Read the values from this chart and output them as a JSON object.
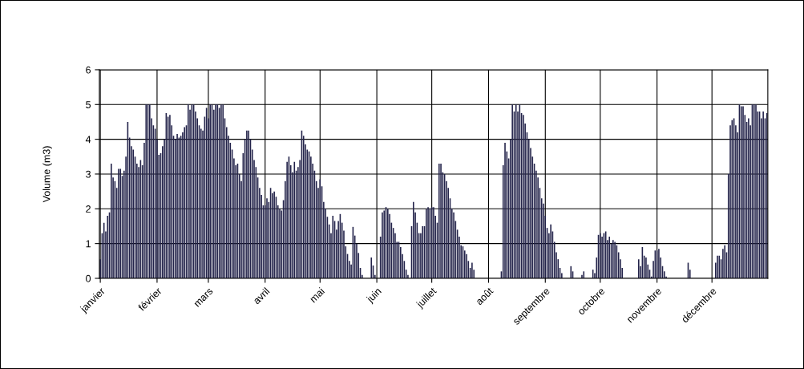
{
  "chart_data": {
    "type": "bar",
    "ylabel": "Volume (m3)",
    "categories": [
      "janvier",
      null,
      null,
      null,
      null,
      null,
      null,
      null,
      null,
      null,
      null,
      null,
      null,
      null,
      null,
      null,
      null,
      null,
      null,
      null,
      null,
      null,
      null,
      null,
      null,
      null,
      null,
      null,
      null,
      null,
      null,
      "février",
      null,
      null,
      null,
      null,
      null,
      null,
      null,
      null,
      null,
      null,
      null,
      null,
      null,
      null,
      null,
      null,
      null,
      null,
      null,
      null,
      null,
      null,
      null,
      null,
      null,
      null,
      null,
      "mars",
      null,
      null,
      null,
      null,
      null,
      null,
      null,
      null,
      null,
      null,
      null,
      null,
      null,
      null,
      null,
      null,
      null,
      null,
      null,
      null,
      null,
      null,
      null,
      null,
      null,
      null,
      null,
      null,
      null,
      null,
      "avril",
      null,
      null,
      null,
      null,
      null,
      null,
      null,
      null,
      null,
      null,
      null,
      null,
      null,
      null,
      null,
      null,
      null,
      null,
      null,
      null,
      null,
      null,
      null,
      null,
      null,
      null,
      null,
      null,
      null,
      "mai",
      null,
      null,
      null,
      null,
      null,
      null,
      null,
      null,
      null,
      null,
      null,
      null,
      null,
      null,
      null,
      null,
      null,
      null,
      null,
      null,
      null,
      null,
      null,
      null,
      null,
      null,
      null,
      null,
      null,
      null,
      "juin",
      null,
      null,
      null,
      null,
      null,
      null,
      null,
      null,
      null,
      null,
      null,
      null,
      null,
      null,
      null,
      null,
      null,
      null,
      null,
      null,
      null,
      null,
      null,
      null,
      null,
      null,
      null,
      null,
      null,
      "juillet",
      null,
      null,
      null,
      null,
      null,
      null,
      null,
      null,
      null,
      null,
      null,
      null,
      null,
      null,
      null,
      null,
      null,
      null,
      null,
      null,
      null,
      null,
      null,
      null,
      null,
      null,
      null,
      null,
      null,
      null,
      "août",
      null,
      null,
      null,
      null,
      null,
      null,
      null,
      null,
      null,
      null,
      null,
      null,
      null,
      null,
      null,
      null,
      null,
      null,
      null,
      null,
      null,
      null,
      null,
      null,
      null,
      null,
      null,
      null,
      null,
      null,
      "septembre",
      null,
      null,
      null,
      null,
      null,
      null,
      null,
      null,
      null,
      null,
      null,
      null,
      null,
      null,
      null,
      null,
      null,
      null,
      null,
      null,
      null,
      null,
      null,
      null,
      null,
      null,
      null,
      null,
      null,
      "octobre",
      null,
      null,
      null,
      null,
      null,
      null,
      null,
      null,
      null,
      null,
      null,
      null,
      null,
      null,
      null,
      null,
      null,
      null,
      null,
      null,
      null,
      null,
      null,
      null,
      null,
      null,
      null,
      null,
      null,
      null,
      "novembre",
      null,
      null,
      null,
      null,
      null,
      null,
      null,
      null,
      null,
      null,
      null,
      null,
      null,
      null,
      null,
      null,
      null,
      null,
      null,
      null,
      null,
      null,
      null,
      null,
      null,
      null,
      null,
      null,
      null,
      "décembre",
      null,
      null,
      null,
      null,
      null,
      null,
      null,
      null,
      null,
      null,
      null,
      null,
      null,
      null,
      null,
      null,
      null,
      null,
      null,
      null,
      null,
      null,
      null,
      null,
      null,
      null,
      null,
      null,
      null,
      null
    ],
    "values": [
      0.55,
      1.3,
      1.6,
      1.35,
      1.8,
      1.9,
      3.3,
      2.9,
      2.8,
      2.6,
      3.15,
      3.15,
      2.95,
      3.1,
      3.5,
      4.5,
      4.05,
      3.8,
      3.7,
      3.5,
      3.3,
      3.2,
      3.4,
      3.25,
      3.9,
      5.0,
      5.0,
      5.0,
      4.6,
      4.4,
      4.3,
      4.0,
      3.55,
      3.6,
      3.8,
      4.0,
      4.75,
      4.65,
      4.7,
      4.4,
      4.1,
      4.0,
      4.15,
      4.05,
      4.1,
      4.2,
      4.35,
      4.4,
      5.0,
      4.85,
      5.0,
      5.0,
      4.8,
      4.6,
      4.4,
      4.3,
      4.25,
      4.65,
      4.9,
      4.6,
      5.0,
      5.0,
      4.85,
      5.0,
      5.0,
      4.9,
      5.0,
      5.0,
      4.6,
      4.35,
      4.1,
      3.9,
      3.7,
      3.45,
      3.25,
      3.3,
      3.0,
      2.8,
      3.6,
      4.0,
      4.25,
      4.25,
      4.0,
      3.7,
      3.4,
      3.2,
      2.9,
      2.6,
      2.4,
      2.1,
      2.1,
      2.3,
      2.2,
      2.6,
      2.45,
      2.5,
      2.35,
      2.1,
      2.0,
      1.95,
      2.25,
      2.8,
      3.35,
      3.5,
      3.25,
      3.05,
      3.35,
      3.1,
      3.2,
      3.4,
      4.25,
      4.1,
      3.85,
      3.7,
      3.65,
      3.5,
      3.3,
      3.1,
      2.8,
      2.6,
      2.85,
      2.65,
      2.2,
      2.0,
      1.77,
      1.55,
      1.3,
      1.8,
      1.65,
      1.4,
      1.65,
      1.85,
      1.6,
      1.37,
      0.92,
      0.7,
      0.5,
      0.4,
      1.48,
      1.23,
      1.0,
      0.73,
      0.3,
      0.1,
      0,
      0,
      0,
      0,
      0.6,
      0.37,
      0.1,
      0,
      0,
      1.2,
      1.9,
      1.95,
      2.05,
      2.0,
      1.85,
      1.6,
      1.45,
      1.3,
      1.05,
      1.05,
      0.9,
      0.7,
      0.5,
      0.25,
      0.1,
      0,
      1.5,
      2.2,
      1.9,
      1.6,
      1.3,
      1.3,
      1.5,
      1.5,
      2.0,
      2.05,
      2.0,
      2.05,
      2.05,
      1.8,
      1.6,
      3.3,
      3.3,
      3.05,
      3.0,
      2.8,
      2.6,
      2.3,
      2.0,
      1.9,
      1.65,
      1.4,
      1.2,
      0.95,
      0.92,
      0.8,
      0.7,
      0.5,
      0.3,
      0.45,
      0.25,
      0,
      0,
      0,
      0,
      0,
      0,
      0,
      0,
      0,
      0,
      0,
      0,
      0,
      0,
      0.2,
      3.25,
      3.9,
      3.65,
      3.45,
      4.0,
      5.0,
      4.8,
      5.0,
      4.8,
      5.0,
      4.75,
      4.7,
      4.45,
      4.2,
      4.0,
      3.75,
      3.5,
      3.3,
      3.1,
      2.9,
      2.6,
      2.3,
      2.15,
      1.8,
      1.45,
      1.3,
      1.55,
      1.35,
      1.05,
      0.75,
      0.55,
      0.3,
      0.15,
      0,
      0,
      0,
      0,
      0.35,
      0.2,
      0,
      0,
      0,
      0,
      0.1,
      0.2,
      0,
      0,
      0,
      0,
      0.25,
      0.15,
      0.6,
      1.25,
      1.3,
      1.2,
      1.3,
      1.35,
      1.1,
      1.2,
      1.0,
      1.1,
      1.05,
      0.95,
      0.75,
      0.55,
      0.3,
      null,
      0,
      0,
      0,
      0,
      0,
      0,
      0,
      0.55,
      0.35,
      0.9,
      0.65,
      0.6,
      0.4,
      0.25,
      0.05,
      0.5,
      0.8,
      0.8,
      0.85,
      0.6,
      0.35,
      0.2,
      0.05,
      null,
      null,
      0,
      0,
      0,
      0,
      0,
      0,
      0,
      0,
      0,
      0.45,
      0.25,
      0,
      0,
      0,
      0,
      0,
      0,
      0,
      0,
      0,
      0,
      0,
      0,
      0,
      0.45,
      0.65,
      0.65,
      0.55,
      0.85,
      0.95,
      0.75,
      3.0,
      4.4,
      4.55,
      4.6,
      4.4,
      4.2,
      5.0,
      4.95,
      4.95,
      4.7,
      4.5,
      4.6,
      4.4,
      5.0,
      5.0,
      5.0,
      4.8,
      4.8,
      4.6,
      4.8,
      4.6,
      4.75
    ],
    "color": "#23234a",
    "ylim": [
      0,
      6
    ],
    "yticks": [
      0,
      1,
      2,
      3,
      4,
      5,
      6
    ],
    "grid": true
  }
}
